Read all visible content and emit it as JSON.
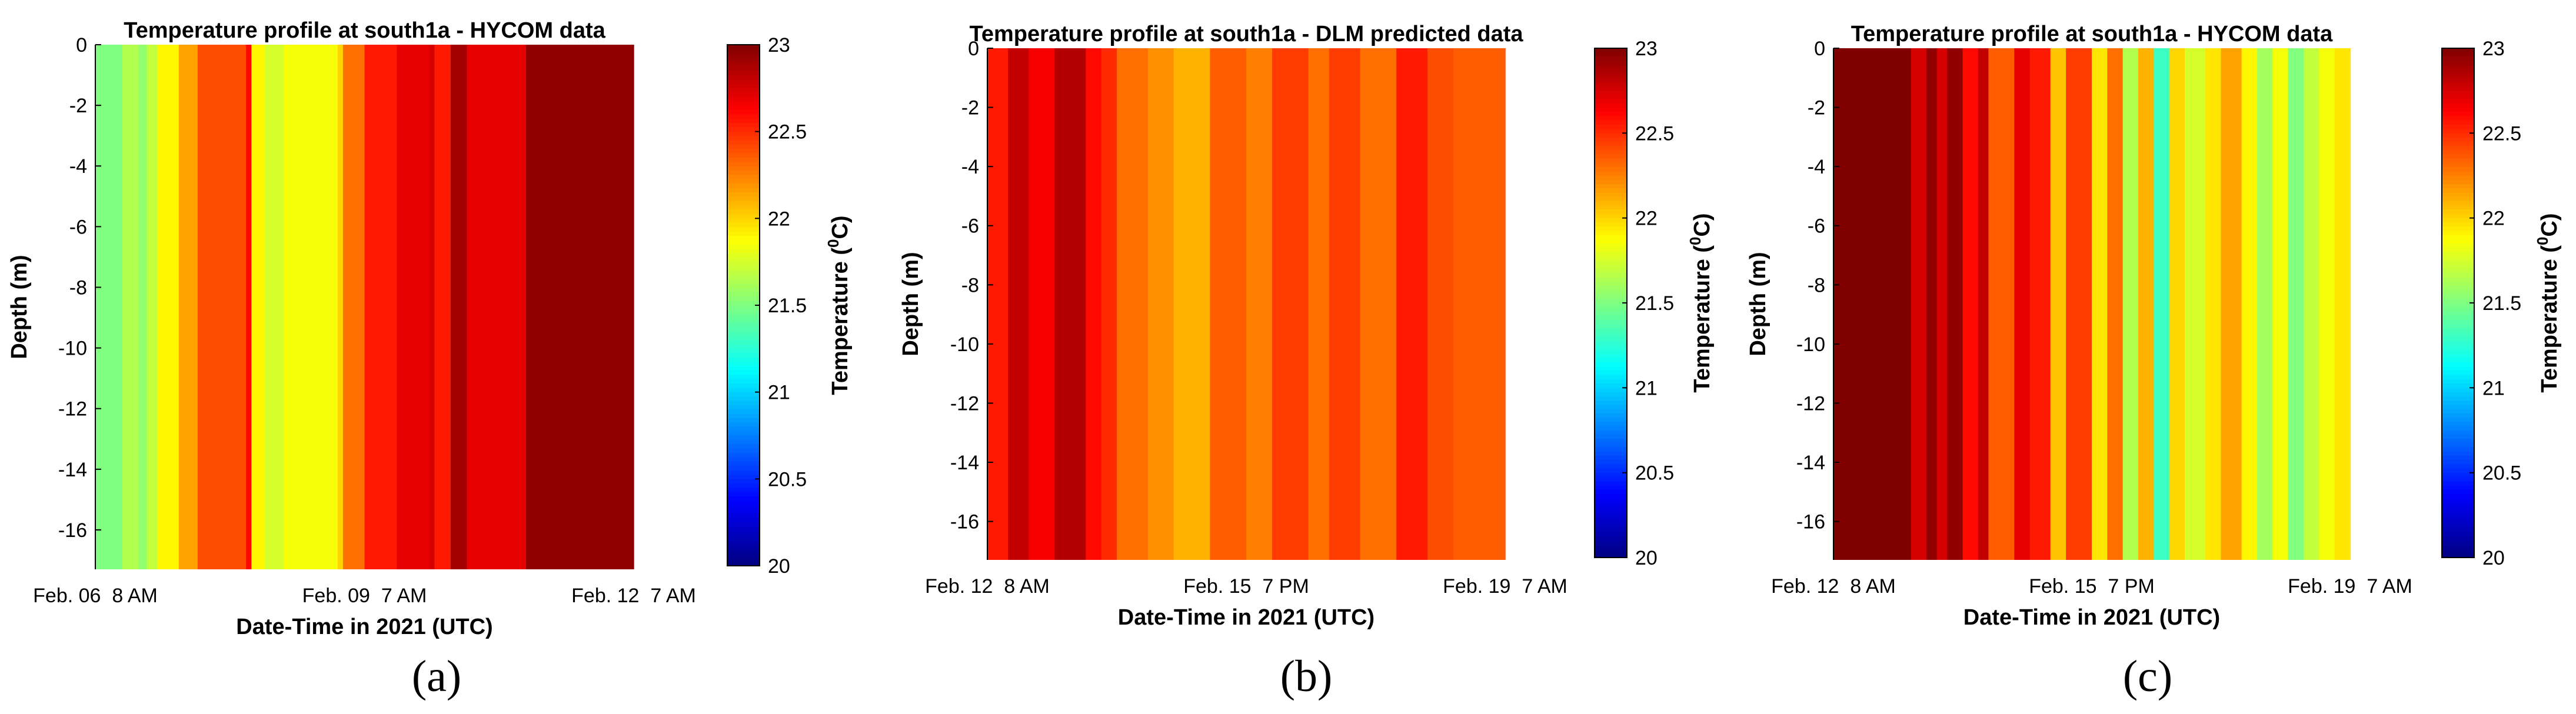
{
  "figure": {
    "panels": [
      {
        "sublabel": "(a)"
      },
      {
        "sublabel": "(b)"
      },
      {
        "sublabel": "(c)"
      }
    ]
  },
  "colorbar": {
    "colormap": "jet",
    "range": [
      20,
      23
    ],
    "ticks": [
      20,
      20.5,
      21,
      21.5,
      22,
      22.5,
      23
    ],
    "label_main": "Temperature (",
    "label_sup": "0",
    "label_end": "C)"
  },
  "chart_data": [
    {
      "type": "heatmap",
      "title": "Temperature profile at south1a - HYCOM data",
      "xlabel": "Date-Time in 2021 (UTC)",
      "ylabel": "Depth (m)",
      "ylim": [
        -17.3,
        0
      ],
      "yticks": [
        0,
        -2,
        -4,
        -6,
        -8,
        -10,
        -12,
        -14,
        -16
      ],
      "xtick_labels": [
        "Feb. 06  8 AM",
        "Feb. 09  7 AM",
        "Feb. 12  7 AM"
      ],
      "xtick_fractions": [
        0,
        0.5,
        1.0
      ],
      "depth_uniform": true,
      "time_fraction_breaks": [
        0,
        0.05,
        0.08,
        0.095,
        0.115,
        0.155,
        0.19,
        0.28,
        0.29,
        0.315,
        0.35,
        0.45,
        0.46,
        0.5,
        0.56,
        0.62,
        0.63,
        0.66,
        0.69,
        0.8,
        1.0
      ],
      "temperature_c": [
        21.5,
        21.65,
        21.55,
        21.7,
        21.9,
        22.15,
        22.4,
        22.6,
        21.9,
        21.75,
        21.85,
        22.0,
        22.3,
        22.55,
        22.7,
        22.75,
        22.55,
        22.9,
        22.7,
        22.95,
        23.0
      ]
    },
    {
      "type": "heatmap",
      "title": "Temperature profile at south1a - DLM predicted data",
      "xlabel": "Date-Time in 2021 (UTC)",
      "ylabel": "Depth (m)",
      "ylim": [
        -17.3,
        0
      ],
      "yticks": [
        0,
        -2,
        -4,
        -6,
        -8,
        -10,
        -12,
        -14,
        -16
      ],
      "xtick_labels": [
        "Feb. 12  8 AM",
        "Feb. 15  7 PM",
        "Feb. 19  7 AM"
      ],
      "xtick_fractions": [
        0,
        0.5,
        1.0
      ],
      "depth_uniform": true,
      "time_fraction_breaks": [
        0,
        0.04,
        0.08,
        0.13,
        0.19,
        0.22,
        0.25,
        0.31,
        0.36,
        0.43,
        0.5,
        0.55,
        0.62,
        0.66,
        0.72,
        0.79,
        0.85,
        0.9,
        1.0
      ],
      "temperature_c": [
        22.55,
        22.8,
        22.65,
        22.85,
        22.6,
        22.5,
        22.3,
        22.2,
        22.1,
        22.35,
        22.25,
        22.45,
        22.3,
        22.45,
        22.3,
        22.55,
        22.4,
        22.35,
        22.45
      ]
    },
    {
      "type": "heatmap",
      "title": "Temperature profile at south1a - HYCOM data",
      "xlabel": "Date-Time in 2021 (UTC)",
      "ylabel": "Depth (m)",
      "ylim": [
        -17.3,
        0
      ],
      "yticks": [
        0,
        -2,
        -4,
        -6,
        -8,
        -10,
        -12,
        -14,
        -16
      ],
      "xtick_labels": [
        "Feb. 12  8 AM",
        "Feb. 15  7 PM",
        "Feb. 19  7 AM"
      ],
      "xtick_fractions": [
        0,
        0.5,
        1.0
      ],
      "depth_uniform": true,
      "time_fraction_breaks": [
        0,
        0.15,
        0.18,
        0.2,
        0.22,
        0.25,
        0.28,
        0.3,
        0.35,
        0.38,
        0.42,
        0.45,
        0.5,
        0.53,
        0.56,
        0.59,
        0.62,
        0.65,
        0.68,
        0.72,
        0.75,
        0.79,
        0.82,
        0.85,
        0.88,
        0.91,
        0.94,
        0.97,
        1.0
      ],
      "temperature_c": [
        23.0,
        22.75,
        22.95,
        22.75,
        22.95,
        22.6,
        22.8,
        22.35,
        22.7,
        22.55,
        22.05,
        22.45,
        21.95,
        22.3,
        21.65,
        22.1,
        21.3,
        22.0,
        21.75,
        21.95,
        22.15,
        21.9,
        21.6,
        21.85,
        21.5,
        21.7,
        21.85,
        21.95,
        22.05
      ]
    }
  ]
}
